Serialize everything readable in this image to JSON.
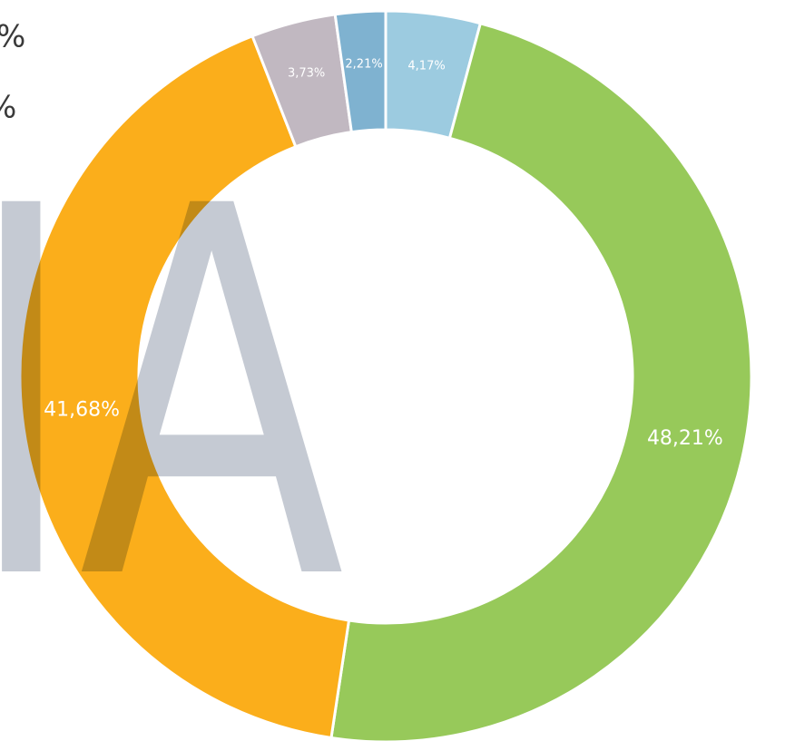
{
  "chart_data": {
    "type": "donut",
    "categories": [
      null,
      null,
      null,
      null,
      null
    ],
    "values": [
      4.17,
      48.21,
      41.68,
      3.73,
      2.21
    ],
    "value_labels": [
      "4,17%",
      "48,21%",
      "41,68%",
      "3,73%",
      "2,21%"
    ],
    "colors": [
      "#9ccbe0",
      "#97c95a",
      "#fbae1b",
      "#c1b8c1",
      "#7fb2d0"
    ],
    "annotations": [
      "%",
      "%"
    ],
    "watermark": "IA"
  }
}
